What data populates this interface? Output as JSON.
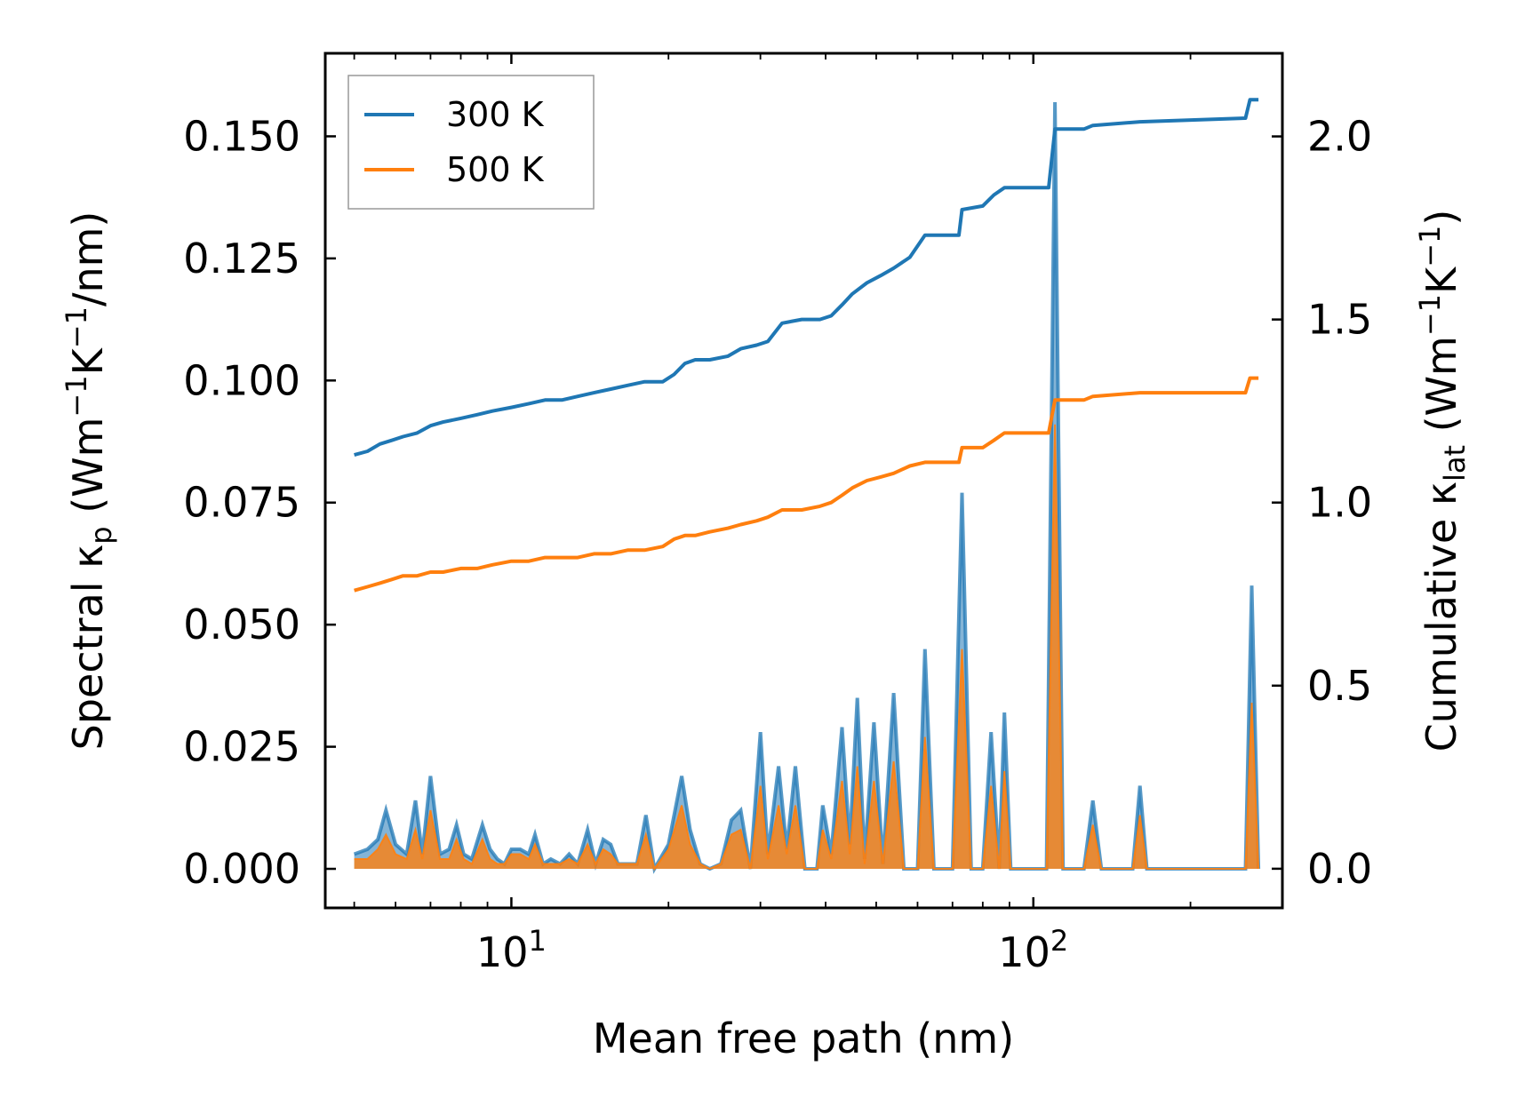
{
  "chart_data": {
    "type": "line",
    "title": "",
    "xlabel": "Mean free path (nm)",
    "x_scale": "log",
    "xlim": [
      4.4,
      300
    ],
    "x_major_ticks": [
      {
        "value": 10,
        "base": "10",
        "exp": "1"
      },
      {
        "value": 100,
        "base": "10",
        "exp": "2"
      }
    ],
    "y_left": {
      "label_parts": {
        "pre": "Spectral κ",
        "sub": "p",
        "mid1": " (Wm",
        "sup1": "−1",
        "mid2": "K",
        "sup2": "−1",
        "post": "/nm)"
      },
      "ylim": [
        -0.008,
        0.167
      ],
      "ticks": [
        0.0,
        0.025,
        0.05,
        0.075,
        0.1,
        0.125,
        0.15
      ],
      "tick_labels": [
        "0.000",
        "0.025",
        "0.050",
        "0.075",
        "0.100",
        "0.125",
        "0.150"
      ]
    },
    "y_right": {
      "label_parts": {
        "pre": "Cumulative κ",
        "sub": "lat",
        "mid1": " (Wm",
        "sup1": "−1",
        "mid2": "K",
        "sup2": "−1",
        "post": ")"
      },
      "ylim": [
        -0.107,
        2.227
      ],
      "ticks": [
        0.0,
        0.5,
        1.0,
        1.5,
        2.0
      ],
      "tick_labels": [
        "0.0",
        "0.5",
        "1.0",
        "1.5",
        "2.0"
      ]
    },
    "legend": {
      "position": "upper-left",
      "entries": [
        {
          "label": "300 K",
          "color": "#1f77b4"
        },
        {
          "label": "500 K",
          "color": "#ff7f0e"
        }
      ]
    },
    "series": [
      {
        "name": "300 K",
        "color": "#1f77b4",
        "cumulative": [
          [
            5.0,
            1.13
          ],
          [
            5.3,
            1.14
          ],
          [
            5.6,
            1.16
          ],
          [
            5.9,
            1.17
          ],
          [
            6.2,
            1.18
          ],
          [
            6.6,
            1.19
          ],
          [
            7.0,
            1.21
          ],
          [
            7.4,
            1.22
          ],
          [
            8.0,
            1.23
          ],
          [
            8.6,
            1.24
          ],
          [
            9.2,
            1.25
          ],
          [
            10.0,
            1.26
          ],
          [
            10.8,
            1.27
          ],
          [
            11.6,
            1.28
          ],
          [
            12.5,
            1.28
          ],
          [
            13.4,
            1.29
          ],
          [
            14.4,
            1.3
          ],
          [
            15.5,
            1.31
          ],
          [
            16.7,
            1.32
          ],
          [
            18.0,
            1.33
          ],
          [
            19.5,
            1.33
          ],
          [
            20.5,
            1.35
          ],
          [
            21.5,
            1.38
          ],
          [
            22.5,
            1.39
          ],
          [
            24.0,
            1.39
          ],
          [
            26.0,
            1.4
          ],
          [
            27.5,
            1.42
          ],
          [
            29.5,
            1.43
          ],
          [
            31.0,
            1.44
          ],
          [
            33.0,
            1.49
          ],
          [
            36.0,
            1.5
          ],
          [
            39.0,
            1.5
          ],
          [
            41.0,
            1.51
          ],
          [
            43.0,
            1.54
          ],
          [
            45.0,
            1.57
          ],
          [
            48.0,
            1.6
          ],
          [
            51.0,
            1.62
          ],
          [
            54.0,
            1.64
          ],
          [
            58.0,
            1.67
          ],
          [
            62.0,
            1.73
          ],
          [
            72.0,
            1.73
          ],
          [
            73.0,
            1.8
          ],
          [
            80.0,
            1.81
          ],
          [
            84.0,
            1.84
          ],
          [
            88.0,
            1.86
          ],
          [
            107.0,
            1.86
          ],
          [
            110.0,
            2.02
          ],
          [
            115.0,
            2.02
          ],
          [
            125.0,
            2.02
          ],
          [
            130.0,
            2.03
          ],
          [
            160.0,
            2.04
          ],
          [
            255.0,
            2.05
          ],
          [
            260.0,
            2.1
          ],
          [
            270.0,
            2.1
          ]
        ],
        "spectral": [
          [
            5.0,
            0.003
          ],
          [
            5.3,
            0.004
          ],
          [
            5.55,
            0.006
          ],
          [
            5.75,
            0.012
          ],
          [
            6.0,
            0.005
          ],
          [
            6.3,
            0.003
          ],
          [
            6.55,
            0.014
          ],
          [
            6.75,
            0.003
          ],
          [
            7.0,
            0.019
          ],
          [
            7.3,
            0.003
          ],
          [
            7.6,
            0.004
          ],
          [
            7.85,
            0.009
          ],
          [
            8.1,
            0.003
          ],
          [
            8.4,
            0.002
          ],
          [
            8.8,
            0.009
          ],
          [
            9.1,
            0.004
          ],
          [
            9.4,
            0.002
          ],
          [
            9.7,
            0.001
          ],
          [
            10.0,
            0.004
          ],
          [
            10.4,
            0.004
          ],
          [
            10.8,
            0.003
          ],
          [
            11.1,
            0.007
          ],
          [
            11.5,
            0.001
          ],
          [
            11.9,
            0.002
          ],
          [
            12.4,
            0.001
          ],
          [
            12.9,
            0.003
          ],
          [
            13.4,
            0.001
          ],
          [
            14.0,
            0.008
          ],
          [
            14.5,
            0.001
          ],
          [
            15.0,
            0.006
          ],
          [
            15.5,
            0.005
          ],
          [
            16.0,
            0.001
          ],
          [
            16.7,
            0.001
          ],
          [
            17.4,
            0.001
          ],
          [
            18.1,
            0.011
          ],
          [
            18.8,
            0.0
          ],
          [
            20.0,
            0.005
          ],
          [
            21.2,
            0.019
          ],
          [
            22.0,
            0.008
          ],
          [
            23.0,
            0.001
          ],
          [
            24.0,
            0.0
          ],
          [
            25.2,
            0.001
          ],
          [
            26.4,
            0.01
          ],
          [
            27.5,
            0.012
          ],
          [
            28.7,
            0.0
          ],
          [
            30.0,
            0.028
          ],
          [
            31.0,
            0.003
          ],
          [
            32.5,
            0.021
          ],
          [
            33.7,
            0.004
          ],
          [
            35.0,
            0.021
          ],
          [
            36.5,
            0.0
          ],
          [
            38.5,
            0.0
          ],
          [
            39.5,
            0.013
          ],
          [
            41.0,
            0.003
          ],
          [
            43.0,
            0.029
          ],
          [
            44.5,
            0.005
          ],
          [
            46.0,
            0.035
          ],
          [
            47.5,
            0.002
          ],
          [
            49.5,
            0.03
          ],
          [
            51.5,
            0.001
          ],
          [
            54.0,
            0.036
          ],
          [
            56.5,
            0.0
          ],
          [
            60.0,
            0.0
          ],
          [
            62.0,
            0.045
          ],
          [
            64.5,
            0.0
          ],
          [
            70.0,
            0.0
          ],
          [
            73.0,
            0.077
          ],
          [
            76.0,
            0.0
          ],
          [
            80.0,
            0.0
          ],
          [
            83.0,
            0.028
          ],
          [
            86.0,
            0.0
          ],
          [
            88.0,
            0.032
          ],
          [
            90.5,
            0.0
          ],
          [
            106.0,
            0.0
          ],
          [
            110.0,
            0.157
          ],
          [
            114.0,
            0.0
          ],
          [
            125.0,
            0.0
          ],
          [
            130.0,
            0.014
          ],
          [
            135.0,
            0.0
          ],
          [
            155.0,
            0.0
          ],
          [
            160.0,
            0.017
          ],
          [
            165.0,
            0.0
          ],
          [
            255.0,
            0.0
          ],
          [
            262.0,
            0.058
          ],
          [
            270.0,
            0.0
          ]
        ]
      },
      {
        "name": "500 K",
        "color": "#ff7f0e",
        "cumulative": [
          [
            5.0,
            0.76
          ],
          [
            5.3,
            0.77
          ],
          [
            5.6,
            0.78
          ],
          [
            5.9,
            0.79
          ],
          [
            6.2,
            0.8
          ],
          [
            6.6,
            0.8
          ],
          [
            7.0,
            0.81
          ],
          [
            7.4,
            0.81
          ],
          [
            8.0,
            0.82
          ],
          [
            8.6,
            0.82
          ],
          [
            9.2,
            0.83
          ],
          [
            10.0,
            0.84
          ],
          [
            10.8,
            0.84
          ],
          [
            11.6,
            0.85
          ],
          [
            12.5,
            0.85
          ],
          [
            13.4,
            0.85
          ],
          [
            14.4,
            0.86
          ],
          [
            15.5,
            0.86
          ],
          [
            16.7,
            0.87
          ],
          [
            18.0,
            0.87
          ],
          [
            19.5,
            0.88
          ],
          [
            20.5,
            0.9
          ],
          [
            21.5,
            0.91
          ],
          [
            22.5,
            0.91
          ],
          [
            24.0,
            0.92
          ],
          [
            26.0,
            0.93
          ],
          [
            27.5,
            0.94
          ],
          [
            29.5,
            0.95
          ],
          [
            31.0,
            0.96
          ],
          [
            33.0,
            0.98
          ],
          [
            36.0,
            0.98
          ],
          [
            39.0,
            0.99
          ],
          [
            41.0,
            1.0
          ],
          [
            43.0,
            1.02
          ],
          [
            45.0,
            1.04
          ],
          [
            48.0,
            1.06
          ],
          [
            51.0,
            1.07
          ],
          [
            54.0,
            1.08
          ],
          [
            58.0,
            1.1
          ],
          [
            62.0,
            1.11
          ],
          [
            72.0,
            1.11
          ],
          [
            73.0,
            1.15
          ],
          [
            80.0,
            1.15
          ],
          [
            84.0,
            1.17
          ],
          [
            88.0,
            1.19
          ],
          [
            107.0,
            1.19
          ],
          [
            110.0,
            1.28
          ],
          [
            115.0,
            1.28
          ],
          [
            125.0,
            1.28
          ],
          [
            130.0,
            1.29
          ],
          [
            160.0,
            1.3
          ],
          [
            255.0,
            1.3
          ],
          [
            260.0,
            1.34
          ],
          [
            270.0,
            1.34
          ]
        ],
        "spectral": [
          [
            5.0,
            0.002
          ],
          [
            5.3,
            0.002
          ],
          [
            5.55,
            0.004
          ],
          [
            5.75,
            0.007
          ],
          [
            6.0,
            0.003
          ],
          [
            6.3,
            0.002
          ],
          [
            6.55,
            0.008
          ],
          [
            6.75,
            0.002
          ],
          [
            7.0,
            0.012
          ],
          [
            7.3,
            0.002
          ],
          [
            7.6,
            0.002
          ],
          [
            7.85,
            0.006
          ],
          [
            8.1,
            0.002
          ],
          [
            8.4,
            0.001
          ],
          [
            8.8,
            0.006
          ],
          [
            9.1,
            0.002
          ],
          [
            9.4,
            0.001
          ],
          [
            9.7,
            0.001
          ],
          [
            10.0,
            0.003
          ],
          [
            10.4,
            0.003
          ],
          [
            10.8,
            0.002
          ],
          [
            11.1,
            0.005
          ],
          [
            11.5,
            0.001
          ],
          [
            11.9,
            0.001
          ],
          [
            12.4,
            0.001
          ],
          [
            12.9,
            0.002
          ],
          [
            13.4,
            0.001
          ],
          [
            14.0,
            0.005
          ],
          [
            14.5,
            0.001
          ],
          [
            15.0,
            0.004
          ],
          [
            15.5,
            0.003
          ],
          [
            16.0,
            0.001
          ],
          [
            16.7,
            0.001
          ],
          [
            17.4,
            0.001
          ],
          [
            18.1,
            0.007
          ],
          [
            18.8,
            0.0
          ],
          [
            20.0,
            0.004
          ],
          [
            21.2,
            0.013
          ],
          [
            22.0,
            0.005
          ],
          [
            23.0,
            0.001
          ],
          [
            24.0,
            0.0
          ],
          [
            25.2,
            0.001
          ],
          [
            26.4,
            0.007
          ],
          [
            27.5,
            0.008
          ],
          [
            28.7,
            0.0
          ],
          [
            30.0,
            0.017
          ],
          [
            31.0,
            0.002
          ],
          [
            32.5,
            0.013
          ],
          [
            33.7,
            0.003
          ],
          [
            35.0,
            0.013
          ],
          [
            36.5,
            0.0
          ],
          [
            38.5,
            0.0
          ],
          [
            39.5,
            0.008
          ],
          [
            41.0,
            0.002
          ],
          [
            43.0,
            0.018
          ],
          [
            44.5,
            0.003
          ],
          [
            46.0,
            0.021
          ],
          [
            47.5,
            0.001
          ],
          [
            49.5,
            0.018
          ],
          [
            51.5,
            0.001
          ],
          [
            54.0,
            0.022
          ],
          [
            56.5,
            0.0
          ],
          [
            60.0,
            0.0
          ],
          [
            62.0,
            0.027
          ],
          [
            64.5,
            0.0
          ],
          [
            70.0,
            0.0
          ],
          [
            73.0,
            0.045
          ],
          [
            76.0,
            0.0
          ],
          [
            80.0,
            0.0
          ],
          [
            83.0,
            0.017
          ],
          [
            86.0,
            0.0
          ],
          [
            88.0,
            0.02
          ],
          [
            90.5,
            0.0
          ],
          [
            106.0,
            0.0
          ],
          [
            110.0,
            0.091
          ],
          [
            114.0,
            0.0
          ],
          [
            125.0,
            0.0
          ],
          [
            130.0,
            0.009
          ],
          [
            135.0,
            0.0
          ],
          [
            155.0,
            0.0
          ],
          [
            160.0,
            0.011
          ],
          [
            165.0,
            0.0
          ],
          [
            255.0,
            0.0
          ],
          [
            262.0,
            0.034
          ],
          [
            270.0,
            0.0
          ]
        ]
      }
    ]
  }
}
